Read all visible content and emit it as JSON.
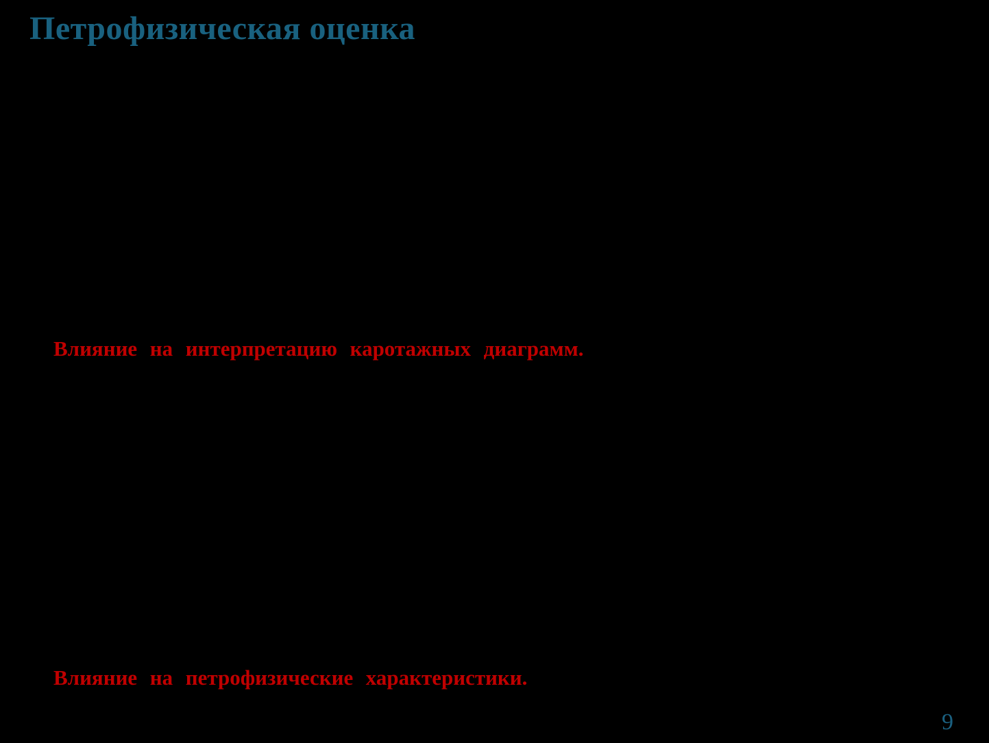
{
  "slide": {
    "title": "Петрофизическая оценка",
    "statements": [
      {
        "text": "Влияние на интерпретацию каротажных диаграмм."
      },
      {
        "text": "Влияние на петрофизические характеристики."
      }
    ],
    "page_number": "9"
  },
  "colors": {
    "background": "#000000",
    "title": "#19617F",
    "statement": "#C00000",
    "page_number": "#1A6080"
  }
}
